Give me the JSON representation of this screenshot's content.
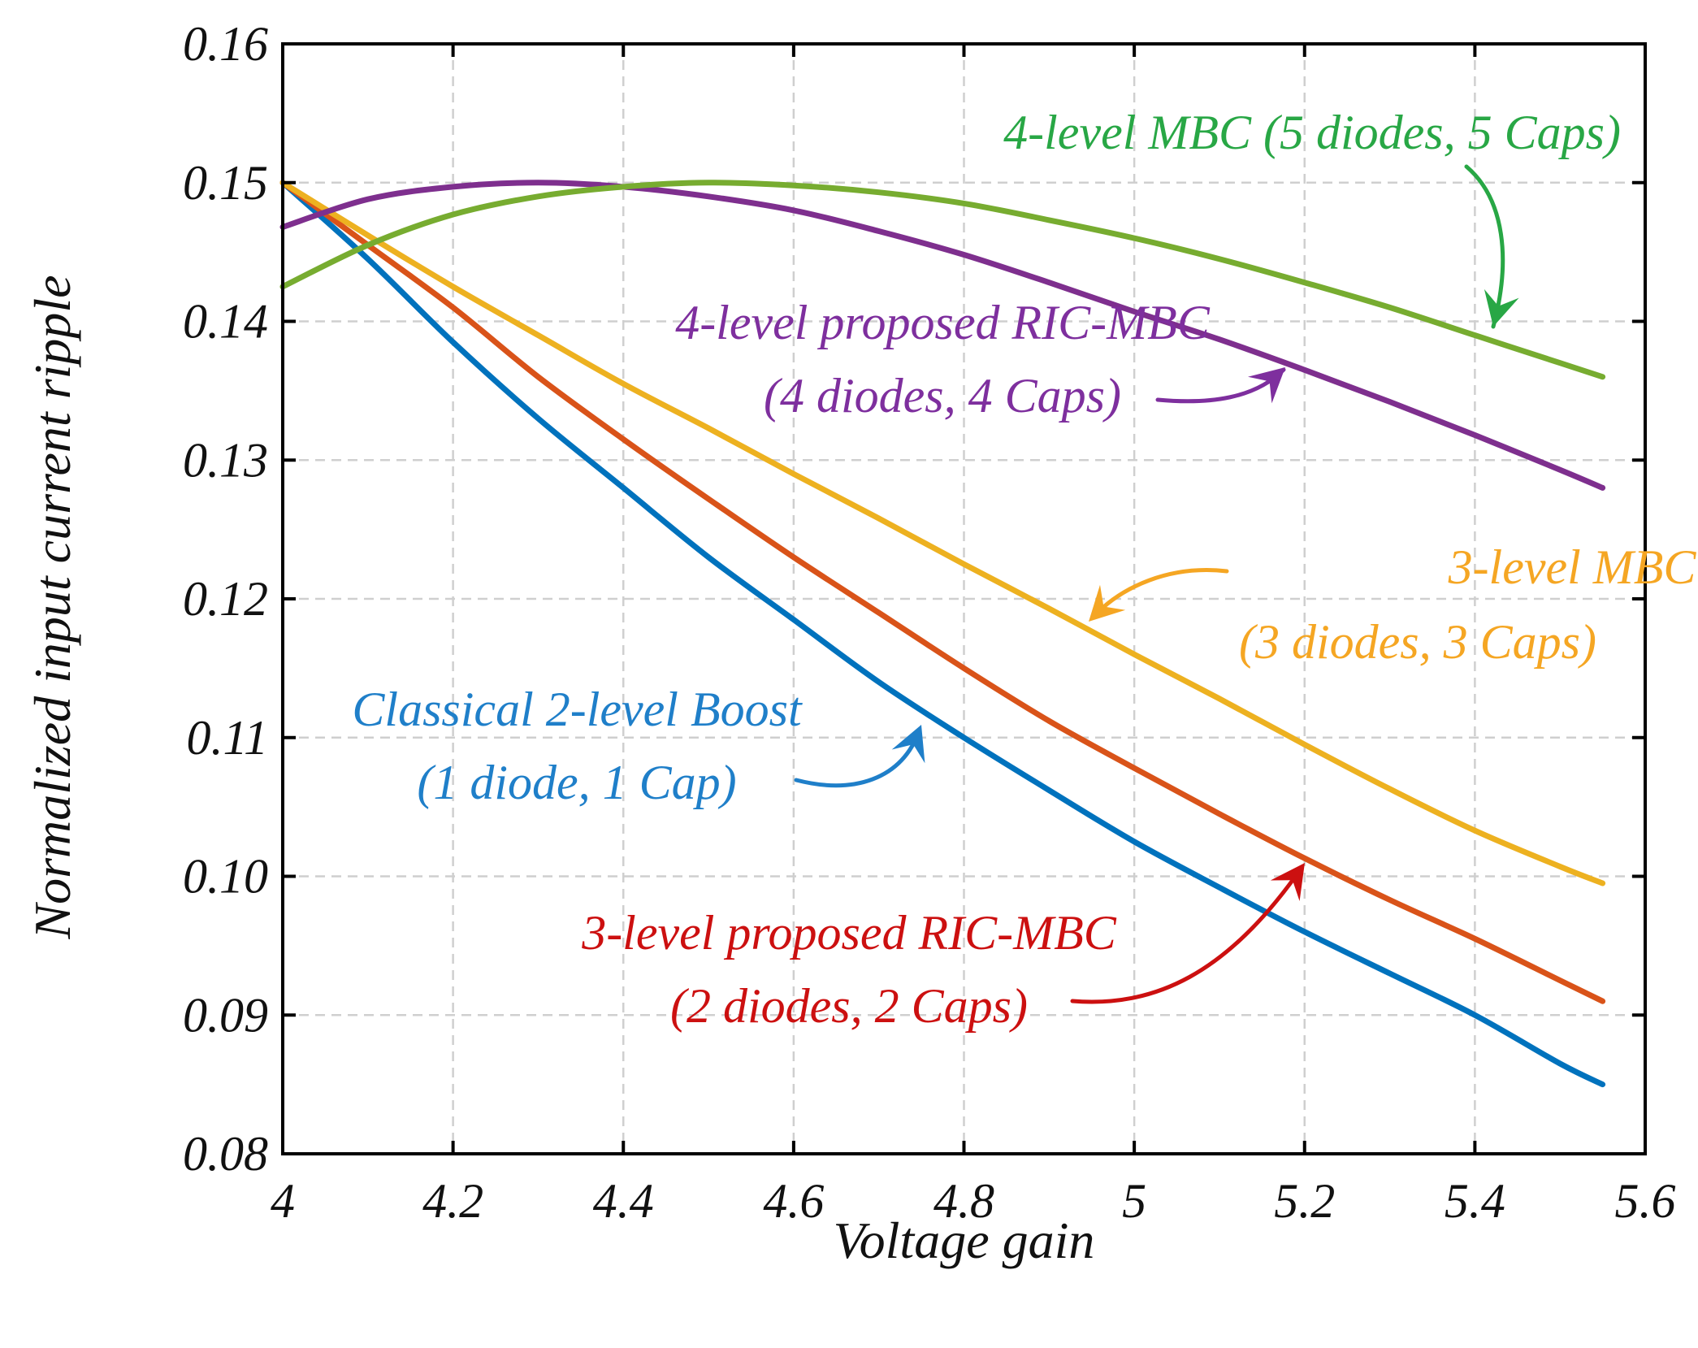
{
  "chart_data": {
    "type": "line",
    "xlabel": "Voltage gain",
    "ylabel": "Normalized input current ripple",
    "xlim": [
      4,
      5.6
    ],
    "ylim": [
      0.08,
      0.16
    ],
    "xticks": [
      4,
      4.2,
      4.4,
      4.6,
      4.8,
      5,
      5.2,
      5.4,
      5.6
    ],
    "xtick_labels": [
      "4",
      "4.2",
      "4.4",
      "4.6",
      "4.8",
      "5",
      "5.2",
      "5.4",
      "5.6"
    ],
    "yticks": [
      0.08,
      0.09,
      0.1,
      0.11,
      0.12,
      0.13,
      0.14,
      0.15,
      0.16
    ],
    "ytick_labels": [
      "0.08",
      "0.09",
      "0.10",
      "0.11",
      "0.12",
      "0.13",
      "0.14",
      "0.15",
      "0.16"
    ],
    "grid": true,
    "series": [
      {
        "key": "classical",
        "color": "#0072BD",
        "x": [
          4.0,
          4.1,
          4.2,
          4.3,
          4.4,
          4.5,
          4.6,
          4.7,
          4.8,
          4.9,
          5.0,
          5.1,
          5.2,
          5.3,
          5.4,
          5.5,
          5.55
        ],
        "values": [
          0.15,
          0.1445,
          0.1385,
          0.133,
          0.128,
          0.123,
          0.1185,
          0.114,
          0.11,
          0.1062,
          0.1025,
          0.0992,
          0.096,
          0.093,
          0.09,
          0.0865,
          0.085
        ]
      },
      {
        "key": "ric3",
        "color": "#D95319",
        "x": [
          4.0,
          4.1,
          4.2,
          4.3,
          4.4,
          4.5,
          4.6,
          4.7,
          4.8,
          4.9,
          5.0,
          5.1,
          5.2,
          5.3,
          5.4,
          5.5,
          5.55
        ],
        "values": [
          0.15,
          0.1455,
          0.141,
          0.136,
          0.1315,
          0.1272,
          0.123,
          0.119,
          0.115,
          0.1112,
          0.1078,
          0.1045,
          0.1013,
          0.0983,
          0.0955,
          0.0925,
          0.091
        ]
      },
      {
        "key": "mbc3",
        "color": "#EDB120",
        "x": [
          4.0,
          4.1,
          4.2,
          4.3,
          4.4,
          4.5,
          4.6,
          4.7,
          4.8,
          4.9,
          5.0,
          5.1,
          5.2,
          5.3,
          5.4,
          5.5,
          5.55
        ],
        "values": [
          0.15,
          0.1462,
          0.1425,
          0.139,
          0.1355,
          0.1323,
          0.129,
          0.1258,
          0.1225,
          0.1193,
          0.116,
          0.1128,
          0.1095,
          0.1063,
          0.1033,
          0.1007,
          0.0995
        ]
      },
      {
        "key": "ric4",
        "color": "#7E2F8E",
        "x": [
          4.0,
          4.1,
          4.2,
          4.3,
          4.4,
          4.5,
          4.6,
          4.7,
          4.8,
          4.9,
          5.0,
          5.1,
          5.2,
          5.3,
          5.4,
          5.5,
          5.55
        ],
        "values": [
          0.1468,
          0.1488,
          0.1497,
          0.15,
          0.1497,
          0.149,
          0.148,
          0.1465,
          0.1448,
          0.1428,
          0.1407,
          0.1387,
          0.1365,
          0.1342,
          0.1318,
          0.1293,
          0.128
        ]
      },
      {
        "key": "mbc4",
        "color": "#77AC30",
        "x": [
          4.0,
          4.1,
          4.2,
          4.3,
          4.4,
          4.5,
          4.6,
          4.7,
          4.8,
          4.9,
          5.0,
          5.1,
          5.2,
          5.3,
          5.4,
          5.5,
          5.55
        ],
        "values": [
          0.1425,
          0.1455,
          0.1477,
          0.149,
          0.1497,
          0.15,
          0.1498,
          0.1493,
          0.1485,
          0.1473,
          0.146,
          0.1445,
          0.1428,
          0.141,
          0.139,
          0.137,
          0.136
        ]
      }
    ],
    "annotations": [
      {
        "key": "mbc4",
        "lines": [
          "4-level MBC (5 diodes, 5 Caps)"
        ],
        "color": "#28A745"
      },
      {
        "key": "ric4",
        "lines": [
          "4-level proposed RIC-MBC",
          "(4 diodes, 4 Caps)"
        ],
        "color": "#7E2F9E"
      },
      {
        "key": "mbc3",
        "lines": [
          "3-level MBC",
          "(3 diodes, 3 Caps)"
        ],
        "color": "#F5A623"
      },
      {
        "key": "classical",
        "lines": [
          "Classical 2-level Boost",
          "(1 diode, 1 Cap)"
        ],
        "color": "#1F7FC9"
      },
      {
        "key": "ric3",
        "lines": [
          "3-level proposed RIC-MBC",
          "(2 diodes, 2 Caps)"
        ],
        "color": "#CC1010"
      }
    ]
  }
}
